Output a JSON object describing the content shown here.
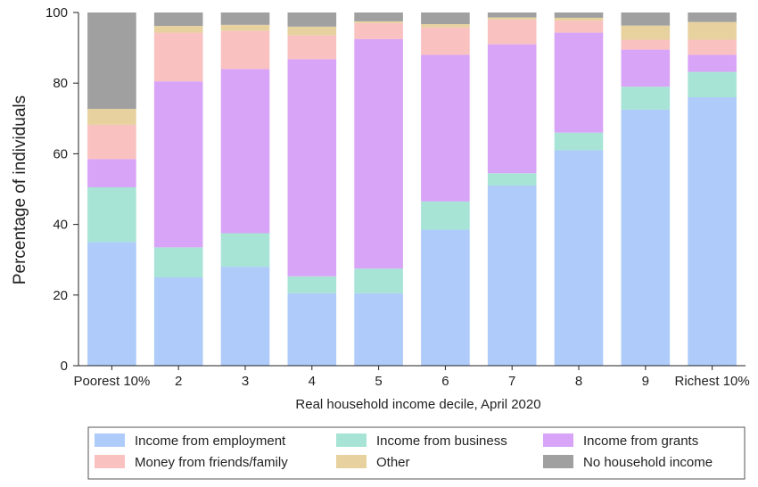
{
  "chart_data": {
    "type": "bar",
    "stacked": true,
    "title": "",
    "xlabel": "Real household income decile, April 2020",
    "ylabel": "Percentage of individuals",
    "ylim": [
      0,
      100
    ],
    "yticks": [
      0,
      20,
      40,
      60,
      80,
      100
    ],
    "grid": false,
    "legend_position": "bottom",
    "categories": [
      "Poorest 10%",
      "2",
      "3",
      "4",
      "5",
      "6",
      "7",
      "8",
      "9",
      "Richest 10%"
    ],
    "series": [
      {
        "name": "Income from employment",
        "color": "#aecbfa",
        "values": [
          35.0,
          25.0,
          28.0,
          20.5,
          20.5,
          38.5,
          51.0,
          61.0,
          72.5,
          76.0
        ]
      },
      {
        "name": "Income from business",
        "color": "#a8e4d6",
        "values": [
          15.5,
          8.5,
          9.5,
          4.8,
          7.0,
          8.0,
          3.5,
          5.0,
          6.5,
          7.2
        ]
      },
      {
        "name": "Income from grants",
        "color": "#d8a4f7",
        "values": [
          8.0,
          47.0,
          46.5,
          61.5,
          65.0,
          41.5,
          36.5,
          28.3,
          10.5,
          4.8
        ]
      },
      {
        "name": "Money from friends/family",
        "color": "#f9c2c1",
        "values": [
          9.7,
          13.8,
          10.8,
          6.7,
          4.5,
          7.8,
          7.0,
          3.4,
          2.8,
          4.3
        ]
      },
      {
        "name": "Other",
        "color": "#e7d29f",
        "values": [
          4.5,
          1.9,
          1.7,
          2.5,
          0.5,
          0.9,
          0.6,
          0.8,
          4.0,
          5.0
        ]
      },
      {
        "name": "No household income",
        "color": "#a0a0a0",
        "values": [
          27.3,
          3.8,
          3.5,
          4.0,
          2.5,
          3.3,
          1.4,
          1.5,
          3.7,
          2.7
        ]
      }
    ]
  }
}
